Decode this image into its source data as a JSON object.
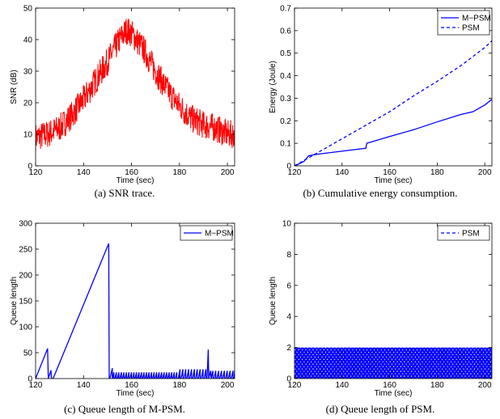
{
  "colors": {
    "red": "#ff0000",
    "blue": "#0000ff"
  },
  "chart_data": [
    {
      "type": "line",
      "caption": "(a) SNR trace.",
      "xlabel": "Time (sec)",
      "ylabel": "SNR (dB)",
      "xlim": [
        120,
        203
      ],
      "ylim": [
        0,
        50
      ],
      "xticks": [
        "120",
        "140",
        "160",
        "180",
        "200"
      ],
      "yticks": [
        "0",
        "10",
        "20",
        "30",
        "40",
        "50"
      ],
      "grid": false,
      "legend": null,
      "series": [
        {
          "color": "#ff0000",
          "style": "solid",
          "noise": 4.5,
          "x": [
            120,
            125,
            130,
            135,
            140,
            145,
            150,
            155,
            158,
            160,
            165,
            170,
            175,
            180,
            185,
            190,
            195,
            200,
            203
          ],
          "y": [
            9,
            10,
            12,
            16,
            21,
            27,
            33,
            40,
            43,
            42,
            37,
            30,
            24,
            19,
            15,
            13,
            12,
            10,
            10
          ]
        }
      ]
    },
    {
      "type": "line",
      "caption": "(b) Cumulative energy consumption.",
      "xlabel": "Time (sec)",
      "ylabel": "Energy (Joule)",
      "xlim": [
        120,
        203
      ],
      "ylim": [
        0,
        0.7
      ],
      "xticks": [
        "120",
        "140",
        "160",
        "180",
        "200"
      ],
      "yticks": [
        "0",
        "0.1",
        "0.2",
        "0.3",
        "0.4",
        "0.5",
        "0.6",
        "0.7"
      ],
      "grid": false,
      "legend": "top-right",
      "series": [
        {
          "name": "M−PSM",
          "color": "#0000ff",
          "style": "solid",
          "x": [
            120,
            121,
            124,
            126,
            130,
            140,
            150,
            150.4,
            160,
            170,
            180,
            190,
            195,
            200,
            203
          ],
          "y": [
            0,
            0.004,
            0.02,
            0.045,
            0.052,
            0.065,
            0.078,
            0.1,
            0.13,
            0.16,
            0.195,
            0.228,
            0.24,
            0.27,
            0.295
          ]
        },
        {
          "name": "PSM",
          "color": "#0000ff",
          "style": "dashed",
          "x": [
            120,
            130,
            140,
            150,
            160,
            170,
            180,
            190,
            200,
            203
          ],
          "y": [
            0,
            0.06,
            0.12,
            0.18,
            0.24,
            0.31,
            0.375,
            0.445,
            0.525,
            0.555
          ]
        }
      ]
    },
    {
      "type": "line",
      "caption": "(c) Queue length of M-PSM.",
      "xlabel": "Time (sec)",
      "ylabel": "Queue length",
      "xlim": [
        120,
        203
      ],
      "ylim": [
        0,
        300
      ],
      "xticks": [
        "120",
        "140",
        "160",
        "180",
        "200"
      ],
      "yticks": [
        "0",
        "50",
        "100",
        "150",
        "200",
        "250",
        "300"
      ],
      "grid": false,
      "legend": "top-right",
      "series": [
        {
          "name": "M−PSM",
          "color": "#0000ff",
          "style": "solid",
          "x": [
            120,
            125,
            125.3,
            126.4,
            126.6,
            127.3,
            150.5,
            150.7,
            151,
            152,
            153,
            192,
            192.2,
            193,
            203
          ],
          "y": [
            0,
            58,
            0,
            16,
            0,
            0,
            261,
            0,
            0,
            20,
            0,
            56,
            0,
            15,
            15
          ]
        }
      ],
      "sawtooth": [
        {
          "from": 152,
          "to": 179,
          "period": 1.05,
          "amp": 12
        },
        {
          "from": 179.5,
          "to": 191.8,
          "period": 1.2,
          "amp": 18
        },
        {
          "from": 193.2,
          "to": 203,
          "period": 1.2,
          "amp": 15
        }
      ]
    },
    {
      "type": "line",
      "caption": "(d) Queue length of PSM.",
      "xlabel": "Time (sec)",
      "ylabel": "Queue length",
      "xlim": [
        120,
        203
      ],
      "ylim": [
        0,
        10
      ],
      "xticks": [
        "120",
        "140",
        "160",
        "180",
        "200"
      ],
      "yticks": [
        "0",
        "2",
        "4",
        "6",
        "8",
        "10"
      ],
      "grid": false,
      "legend": "top-right",
      "series": [
        {
          "name": "PSM",
          "color": "#0000ff",
          "style": "dashed",
          "oscillation": {
            "from": 120,
            "to": 203,
            "period": 0.1,
            "values": [
              0,
              1,
              2
            ]
          }
        }
      ]
    }
  ]
}
